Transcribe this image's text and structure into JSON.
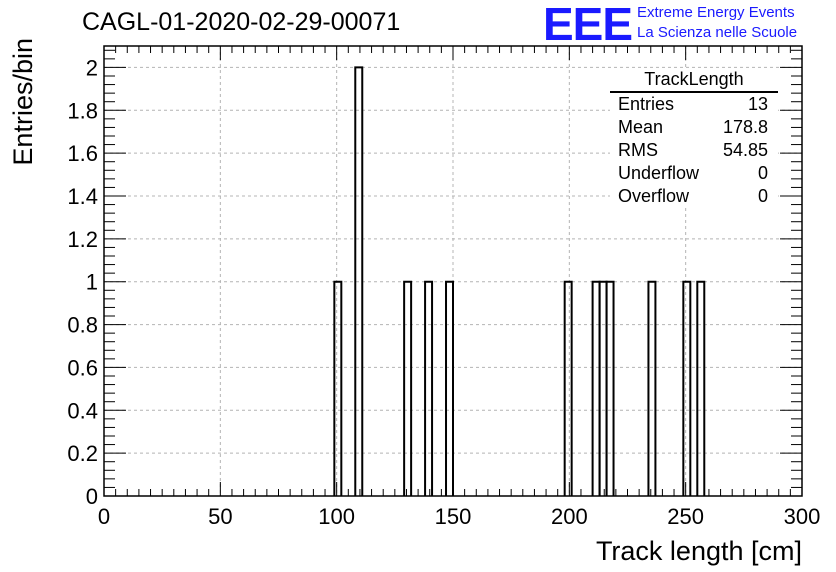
{
  "chart_data": {
    "type": "bar",
    "title": "CAGL-01-2020-02-29-00071",
    "xlabel": "Track length [cm]",
    "ylabel": "Entries/bin",
    "xlim": [
      0,
      300
    ],
    "ylim": [
      0,
      2.1
    ],
    "xticks": [
      0,
      50,
      100,
      150,
      200,
      250,
      300
    ],
    "xtick_labels": [
      "0",
      "50",
      "100",
      "150",
      "200",
      "250",
      "300"
    ],
    "yticks": [
      0,
      0.2,
      0.4,
      0.6,
      0.8,
      1,
      1.2,
      1.4,
      1.6,
      1.8,
      2
    ],
    "ytick_labels": [
      "0",
      "0.2",
      "0.4",
      "0.6",
      "0.8",
      "1",
      "1.2",
      "1.4",
      "1.6",
      "1.8",
      "2"
    ],
    "grid": true,
    "bin_width": 3,
    "bins": [
      {
        "x_low": 99,
        "x_high": 102,
        "value": 1
      },
      {
        "x_low": 108,
        "x_high": 111,
        "value": 2
      },
      {
        "x_low": 129,
        "x_high": 132,
        "value": 1
      },
      {
        "x_low": 138,
        "x_high": 141,
        "value": 1
      },
      {
        "x_low": 147,
        "x_high": 150,
        "value": 1
      },
      {
        "x_low": 198,
        "x_high": 201,
        "value": 1
      },
      {
        "x_low": 210,
        "x_high": 213,
        "value": 1
      },
      {
        "x_low": 213,
        "x_high": 216,
        "value": 1
      },
      {
        "x_low": 216,
        "x_high": 219,
        "value": 1
      },
      {
        "x_low": 234,
        "x_high": 237,
        "value": 1
      },
      {
        "x_low": 249,
        "x_high": 252,
        "value": 1
      },
      {
        "x_low": 255,
        "x_high": 258,
        "value": 1
      }
    ],
    "stats_box": {
      "name": "TrackLength",
      "rows": [
        {
          "label": "Entries",
          "value": "13"
        },
        {
          "label": "Mean",
          "value": "178.8"
        },
        {
          "label": "RMS",
          "value": "54.85"
        },
        {
          "label": "Underflow",
          "value": "0"
        },
        {
          "label": "Overflow",
          "value": "0"
        }
      ],
      "placement": "top-right"
    },
    "line_color": "#000000"
  },
  "logo": {
    "mark": "EEE",
    "line1": "Extreme Energy Events",
    "line2": "La Scienza nelle Scuole",
    "color": "#1a1aff"
  }
}
